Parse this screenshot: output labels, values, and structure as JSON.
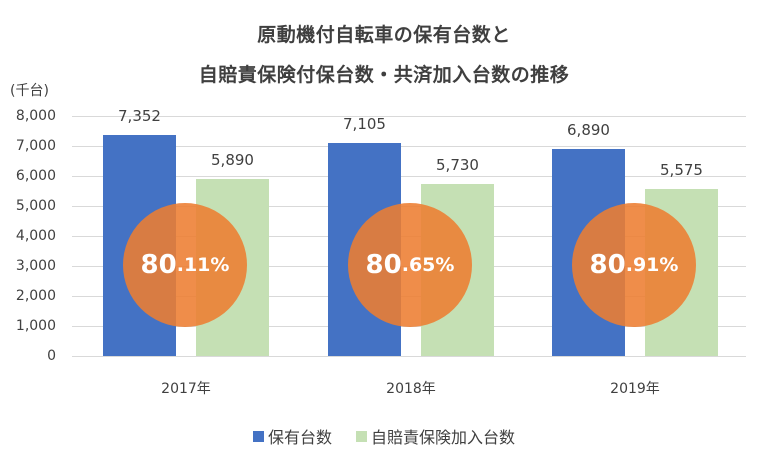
{
  "chart_data": {
    "type": "bar",
    "title": "原動機付自転車の保有台数と自賠責保険付保台数・共済加入台数の推移",
    "title_lines": [
      "原動機付自転車の保有台数と",
      "自賠責保険付保台数・共済加入台数の推移"
    ],
    "ylabel": "(千台)",
    "xlabel": "",
    "categories": [
      "2017年",
      "2018年",
      "2019年"
    ],
    "series": [
      {
        "name": "保有台数",
        "color": "#4472c4",
        "values": [
          7352,
          7105,
          6890
        ],
        "labels": [
          "7,352",
          "7,105",
          "6,890"
        ]
      },
      {
        "name": "自賠責保険加入台数",
        "color": "#c5e0b4",
        "values": [
          5890,
          5730,
          5575
        ],
        "labels": [
          "5,890",
          "5,730",
          "5,575"
        ]
      }
    ],
    "annotations": [
      {
        "category": "2017年",
        "ratio_int": "80",
        "ratio_dec": ".11%",
        "text": "80.11%"
      },
      {
        "category": "2018年",
        "ratio_int": "80",
        "ratio_dec": ".65%",
        "text": "80.65%"
      },
      {
        "category": "2019年",
        "ratio_int": "80",
        "ratio_dec": ".91%",
        "text": "80.91%"
      }
    ],
    "ylim": [
      0,
      8000
    ],
    "yticks": [
      "8,000",
      "7,000",
      "6,000",
      "5,000",
      "4,000",
      "3,000",
      "2,000",
      "1,000",
      "0"
    ],
    "grid": true,
    "legend_position": "bottom"
  }
}
